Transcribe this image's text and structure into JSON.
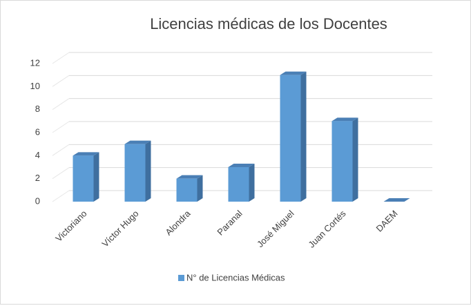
{
  "chart_data": {
    "type": "bar",
    "title": "Licencias médicas de los Docentes",
    "categories": [
      "Victoriano",
      "Víctor Hugo",
      "Alondra",
      "Paranal",
      "José Miguel",
      "Juan Cortés",
      "DAEM"
    ],
    "series": [
      {
        "name": "N° de Licencias Médicas",
        "color": "#5b9bd5",
        "values": [
          4,
          5,
          2,
          3,
          11,
          7,
          0
        ]
      }
    ],
    "ylim": [
      0,
      12
    ],
    "yticks": [
      0,
      2,
      4,
      6,
      8,
      10,
      12
    ],
    "grid": true,
    "legend": "bottom"
  }
}
